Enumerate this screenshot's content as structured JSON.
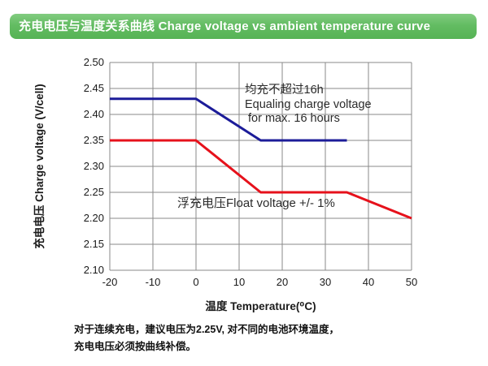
{
  "header": {
    "title": "充电电压与温度关系曲线 Charge voltage vs ambient temperature curve",
    "bg_color": "#63bc62",
    "text_color": "#ffffff"
  },
  "chart_data": {
    "type": "line",
    "title": "充电电压与温度关系曲线 Charge voltage vs ambient temperature curve",
    "xlabel": "温度 Temperature(⁰C)",
    "ylabel": "充电电压 Charge voltage (V/cell)",
    "xlim": [
      -20,
      50
    ],
    "ylim": [
      2.1,
      2.5
    ],
    "x_ticks": [
      "-20",
      "-10",
      "0",
      "10",
      "20",
      "30",
      "40",
      "50"
    ],
    "y_ticks": [
      "2.50",
      "2.45",
      "2.40",
      "2.35",
      "2.30",
      "2.25",
      "2.20",
      "2.15",
      "2.10"
    ],
    "grid": true,
    "grid_color": "#8a8a8a",
    "legend_position": "none",
    "series": [
      {
        "name": "Equalizing charge voltage",
        "color": "#1c1c99",
        "points": [
          [
            -20,
            2.43
          ],
          [
            0,
            2.43
          ],
          [
            15,
            2.35
          ],
          [
            35,
            2.35
          ]
        ]
      },
      {
        "name": "Float voltage",
        "color": "#e6111b",
        "points": [
          [
            -20,
            2.35
          ],
          [
            0,
            2.35
          ],
          [
            15,
            2.25
          ],
          [
            35,
            2.25
          ],
          [
            50,
            2.2
          ]
        ]
      }
    ],
    "annotations": {
      "equalizing": {
        "line1": "均充不超过16h",
        "line2": "Equaling charge voltage",
        "line3": "for max. 16 hours"
      },
      "float": {
        "text": "浮充电压Float voltage +/- 1%"
      }
    }
  },
  "footer": {
    "line1": "对于连续充电，建议电压为2.25V, 对不同的电池环境温度，",
    "line2": "充电电压必须按曲线补偿。"
  }
}
